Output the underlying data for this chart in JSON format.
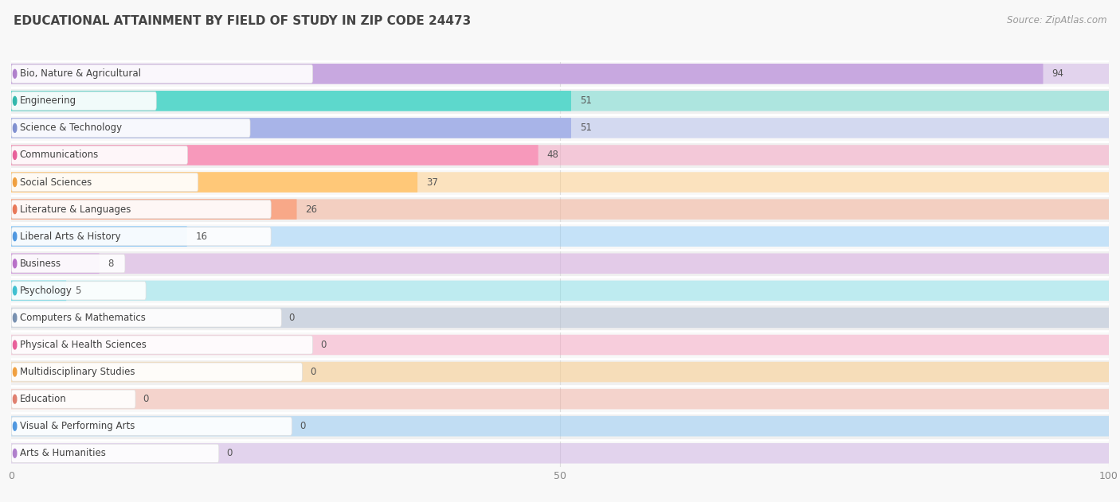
{
  "title": "EDUCATIONAL ATTAINMENT BY FIELD OF STUDY IN ZIP CODE 24473",
  "source": "Source: ZipAtlas.com",
  "categories": [
    "Bio, Nature & Agricultural",
    "Engineering",
    "Science & Technology",
    "Communications",
    "Social Sciences",
    "Literature & Languages",
    "Liberal Arts & History",
    "Business",
    "Psychology",
    "Computers & Mathematics",
    "Physical & Health Sciences",
    "Multidisciplinary Studies",
    "Education",
    "Visual & Performing Arts",
    "Arts & Humanities"
  ],
  "values": [
    94,
    51,
    51,
    48,
    37,
    26,
    16,
    8,
    5,
    0,
    0,
    0,
    0,
    0,
    0
  ],
  "bar_colors": [
    "#c8a8e0",
    "#5dd8cc",
    "#a8b4e8",
    "#f799bb",
    "#ffc878",
    "#f8a888",
    "#88c8f8",
    "#d4a0e0",
    "#78dce8",
    "#a8b8d0",
    "#f799bb",
    "#ffc878",
    "#f0a898",
    "#88c8f8",
    "#c8a8e0"
  ],
  "dot_colors": [
    "#b080cc",
    "#30b8ac",
    "#8090d0",
    "#e8609a",
    "#f0a040",
    "#e87858",
    "#5098e0",
    "#b870c8",
    "#40c0d0",
    "#7890b0",
    "#e8609a",
    "#f0a040",
    "#e08070",
    "#5098e0",
    "#b080cc"
  ],
  "xlim": [
    0,
    100
  ],
  "xticks": [
    0,
    50,
    100
  ],
  "background_color": "#f0f0f0",
  "row_bg_even": "#f8f8f8",
  "row_bg_odd": "#f0f0f0",
  "separator_color": "#ffffff",
  "title_fontsize": 11,
  "source_fontsize": 8.5,
  "label_fontsize": 8.5,
  "value_fontsize": 8.5
}
